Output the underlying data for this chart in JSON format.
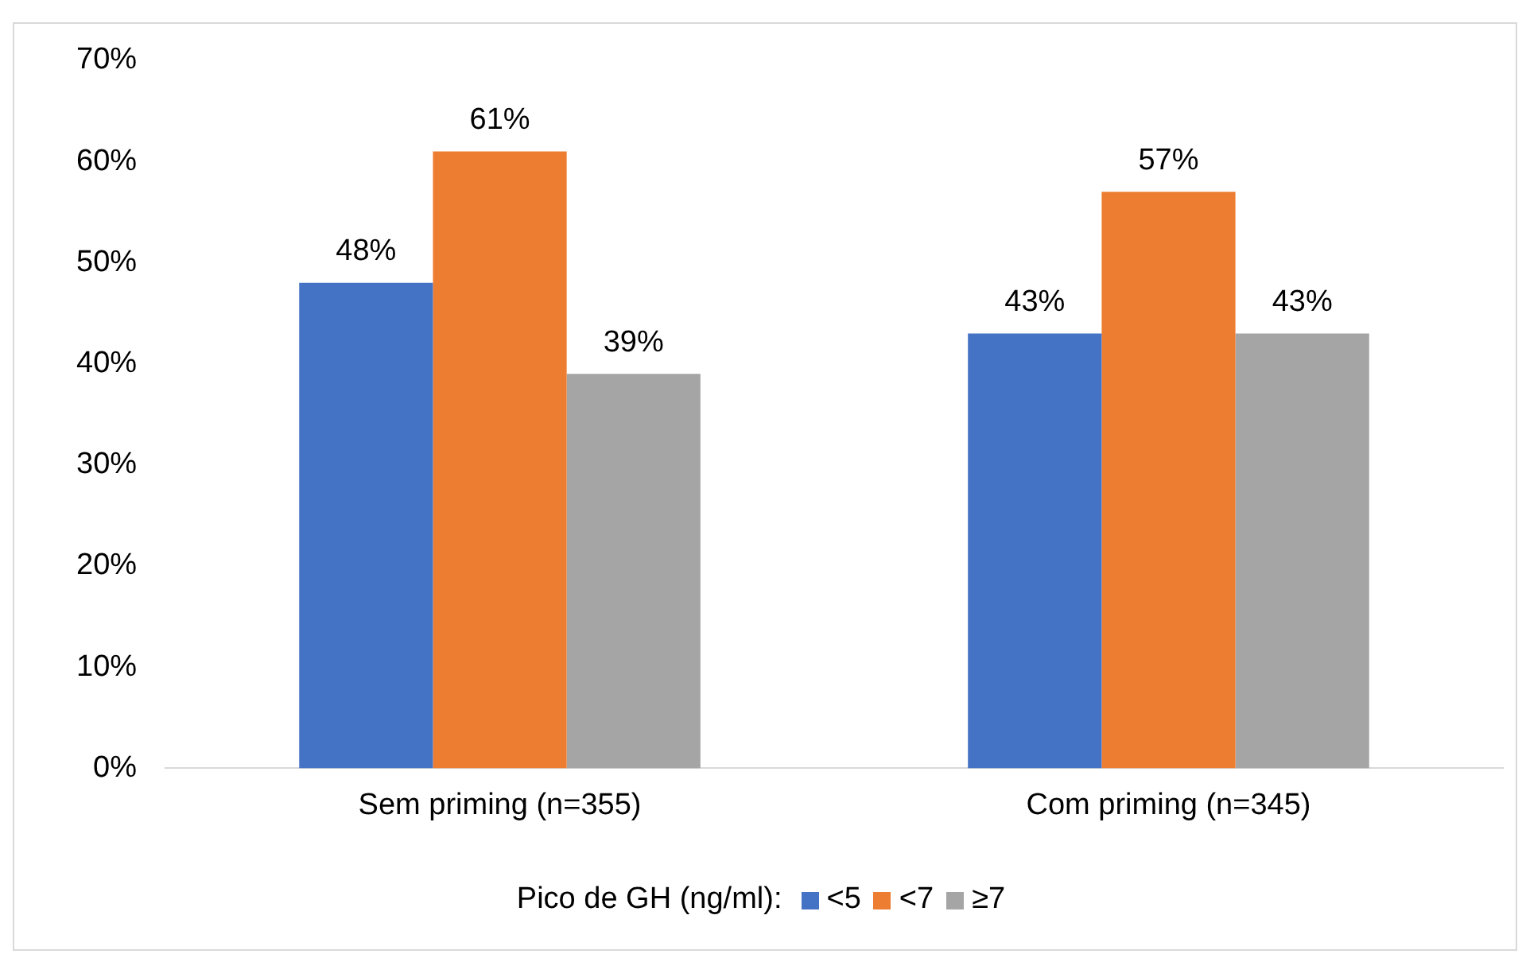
{
  "chart_data": {
    "type": "bar",
    "legend_title": "Pico de GH (ng/ml):",
    "categories": [
      "Sem priming (n=355)",
      "Com priming (n=345)"
    ],
    "series": [
      {
        "name": "<5",
        "color": "#4472c4",
        "values": [
          48,
          43
        ],
        "value_labels": [
          "48%",
          "43%"
        ]
      },
      {
        "name": "<7",
        "color": "#ed7d31",
        "values": [
          61,
          57
        ],
        "value_labels": [
          "61%",
          "57%"
        ]
      },
      {
        "name": "≥7",
        "color": "#a5a5a5",
        "values": [
          39,
          43
        ],
        "value_labels": [
          "39%",
          "43%"
        ]
      }
    ],
    "ylim": [
      0,
      70
    ],
    "yticks": [
      {
        "value": 0,
        "label": "0%"
      },
      {
        "value": 10,
        "label": "10%"
      },
      {
        "value": 20,
        "label": "20%"
      },
      {
        "value": 30,
        "label": "30%"
      },
      {
        "value": 40,
        "label": "40%"
      },
      {
        "value": 50,
        "label": "50%"
      },
      {
        "value": 60,
        "label": "60%"
      },
      {
        "value": 70,
        "label": "70%"
      }
    ],
    "grid": false,
    "legend": "bottom"
  }
}
